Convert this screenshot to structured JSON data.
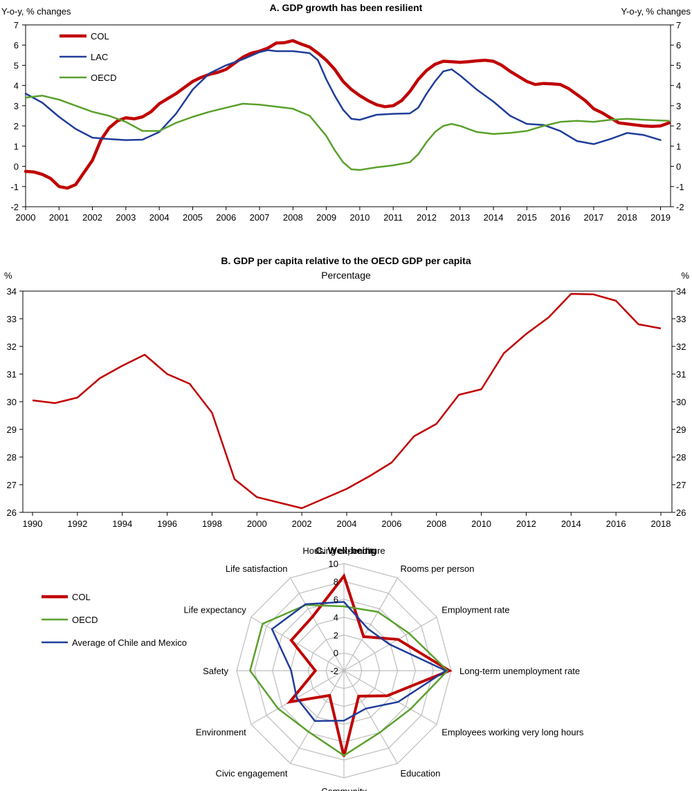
{
  "colors": {
    "col": "#c00000",
    "lac": "#1f3d99",
    "oecd": "#5aa02c",
    "grid": "#bdbdbd"
  },
  "panelA": {
    "title": "A. GDP growth has been resilient",
    "left_unit": "Y-o-y, % changes",
    "right_unit": "Y-o-y, % changes",
    "chart_data": {
      "type": "line",
      "ylim": [
        -2,
        7
      ],
      "xlim": [
        2000,
        2019.3
      ],
      "y_ticks": [
        "-2",
        "-1",
        "0",
        "1",
        "2",
        "3",
        "4",
        "5",
        "6",
        "7"
      ],
      "x_ticks": [
        "2000",
        "2001",
        "2002",
        "2003",
        "2004",
        "2005",
        "2006",
        "2007",
        "2008",
        "2009",
        "2010",
        "2011",
        "2012",
        "2013",
        "2014",
        "2015",
        "2016",
        "2017",
        "2018",
        "2019"
      ],
      "legend_position": "top-left",
      "series": [
        {
          "name": "COL",
          "color_key": "col",
          "points": [
            [
              2000,
              -0.25
            ],
            [
              2000.25,
              -0.28
            ],
            [
              2000.5,
              -0.4
            ],
            [
              2000.75,
              -0.6
            ],
            [
              2001,
              -1.0
            ],
            [
              2001.25,
              -1.08
            ],
            [
              2001.5,
              -0.9
            ],
            [
              2001.75,
              -0.3
            ],
            [
              2002,
              0.3
            ],
            [
              2002.25,
              1.3
            ],
            [
              2002.5,
              1.9
            ],
            [
              2002.75,
              2.25
            ],
            [
              2003,
              2.4
            ],
            [
              2003.25,
              2.35
            ],
            [
              2003.5,
              2.45
            ],
            [
              2003.75,
              2.7
            ],
            [
              2004,
              3.1
            ],
            [
              2004.25,
              3.35
            ],
            [
              2004.5,
              3.6
            ],
            [
              2004.75,
              3.9
            ],
            [
              2005,
              4.2
            ],
            [
              2005.25,
              4.4
            ],
            [
              2005.5,
              4.55
            ],
            [
              2005.75,
              4.65
            ],
            [
              2006,
              4.8
            ],
            [
              2006.25,
              5.1
            ],
            [
              2006.5,
              5.4
            ],
            [
              2006.75,
              5.6
            ],
            [
              2007,
              5.7
            ],
            [
              2007.25,
              5.85
            ],
            [
              2007.5,
              6.1
            ],
            [
              2007.75,
              6.12
            ],
            [
              2008,
              6.22
            ],
            [
              2008.25,
              6.05
            ],
            [
              2008.5,
              5.9
            ],
            [
              2008.75,
              5.6
            ],
            [
              2009,
              5.25
            ],
            [
              2009.25,
              4.8
            ],
            [
              2009.5,
              4.2
            ],
            [
              2009.75,
              3.8
            ],
            [
              2010,
              3.5
            ],
            [
              2010.25,
              3.25
            ],
            [
              2010.5,
              3.05
            ],
            [
              2010.75,
              2.95
            ],
            [
              2011,
              3.0
            ],
            [
              2011.25,
              3.25
            ],
            [
              2011.5,
              3.7
            ],
            [
              2011.75,
              4.3
            ],
            [
              2012,
              4.75
            ],
            [
              2012.25,
              5.05
            ],
            [
              2012.5,
              5.2
            ],
            [
              2012.75,
              5.18
            ],
            [
              2013,
              5.15
            ],
            [
              2013.25,
              5.18
            ],
            [
              2013.5,
              5.22
            ],
            [
              2013.75,
              5.25
            ],
            [
              2014,
              5.2
            ],
            [
              2014.25,
              5.0
            ],
            [
              2014.5,
              4.7
            ],
            [
              2014.75,
              4.45
            ],
            [
              2015,
              4.2
            ],
            [
              2015.25,
              4.05
            ],
            [
              2015.5,
              4.1
            ],
            [
              2015.75,
              4.08
            ],
            [
              2016,
              4.05
            ],
            [
              2016.25,
              3.85
            ],
            [
              2016.5,
              3.55
            ],
            [
              2016.75,
              3.25
            ],
            [
              2017,
              2.85
            ],
            [
              2017.25,
              2.65
            ],
            [
              2017.5,
              2.4
            ],
            [
              2017.75,
              2.15
            ],
            [
              2018,
              2.1
            ],
            [
              2018.25,
              2.05
            ],
            [
              2018.5,
              2.0
            ],
            [
              2018.75,
              1.98
            ],
            [
              2019,
              2.0
            ],
            [
              2019.25,
              2.15
            ]
          ]
        },
        {
          "name": "LAC",
          "color_key": "lac",
          "points": [
            [
              2000,
              3.6
            ],
            [
              2000.5,
              3.15
            ],
            [
              2001,
              2.45
            ],
            [
              2001.5,
              1.85
            ],
            [
              2002,
              1.42
            ],
            [
              2002.5,
              1.35
            ],
            [
              2003,
              1.3
            ],
            [
              2003.5,
              1.32
            ],
            [
              2004,
              1.7
            ],
            [
              2004.5,
              2.6
            ],
            [
              2005,
              3.8
            ],
            [
              2005.5,
              4.6
            ],
            [
              2006,
              5.0
            ],
            [
              2006.5,
              5.3
            ],
            [
              2007,
              5.65
            ],
            [
              2007.25,
              5.75
            ],
            [
              2007.5,
              5.7
            ],
            [
              2008,
              5.7
            ],
            [
              2008.25,
              5.65
            ],
            [
              2008.5,
              5.6
            ],
            [
              2008.75,
              5.25
            ],
            [
              2009,
              4.3
            ],
            [
              2009.25,
              3.5
            ],
            [
              2009.5,
              2.8
            ],
            [
              2009.75,
              2.35
            ],
            [
              2010,
              2.3
            ],
            [
              2010.5,
              2.55
            ],
            [
              2011,
              2.6
            ],
            [
              2011.5,
              2.62
            ],
            [
              2011.75,
              2.9
            ],
            [
              2012,
              3.6
            ],
            [
              2012.25,
              4.2
            ],
            [
              2012.5,
              4.7
            ],
            [
              2012.75,
              4.8
            ],
            [
              2013,
              4.5
            ],
            [
              2013.5,
              3.8
            ],
            [
              2014,
              3.2
            ],
            [
              2014.5,
              2.5
            ],
            [
              2015,
              2.1
            ],
            [
              2015.5,
              2.05
            ],
            [
              2016,
              1.75
            ],
            [
              2016.5,
              1.25
            ],
            [
              2017,
              1.1
            ],
            [
              2017.5,
              1.35
            ],
            [
              2018,
              1.65
            ],
            [
              2018.5,
              1.55
            ],
            [
              2019,
              1.3
            ]
          ]
        },
        {
          "name": "OECD",
          "color_key": "oecd",
          "points": [
            [
              2000,
              3.4
            ],
            [
              2000.5,
              3.5
            ],
            [
              2001,
              3.3
            ],
            [
              2001.5,
              3.0
            ],
            [
              2002,
              2.7
            ],
            [
              2002.5,
              2.5
            ],
            [
              2003,
              2.2
            ],
            [
              2003.5,
              1.75
            ],
            [
              2004,
              1.75
            ],
            [
              2004.5,
              2.15
            ],
            [
              2005,
              2.45
            ],
            [
              2005.5,
              2.7
            ],
            [
              2006,
              2.9
            ],
            [
              2006.5,
              3.1
            ],
            [
              2007,
              3.05
            ],
            [
              2007.5,
              2.95
            ],
            [
              2008,
              2.85
            ],
            [
              2008.5,
              2.5
            ],
            [
              2009,
              1.5
            ],
            [
              2009.25,
              0.8
            ],
            [
              2009.5,
              0.2
            ],
            [
              2009.75,
              -0.15
            ],
            [
              2010,
              -0.18
            ],
            [
              2010.5,
              -0.05
            ],
            [
              2011,
              0.05
            ],
            [
              2011.5,
              0.2
            ],
            [
              2011.75,
              0.6
            ],
            [
              2012,
              1.2
            ],
            [
              2012.25,
              1.7
            ],
            [
              2012.5,
              2.0
            ],
            [
              2012.75,
              2.1
            ],
            [
              2013,
              2.0
            ],
            [
              2013.5,
              1.7
            ],
            [
              2014,
              1.6
            ],
            [
              2014.5,
              1.65
            ],
            [
              2015,
              1.75
            ],
            [
              2015.5,
              2.0
            ],
            [
              2016,
              2.2
            ],
            [
              2016.5,
              2.25
            ],
            [
              2017,
              2.2
            ],
            [
              2017.5,
              2.3
            ],
            [
              2018,
              2.35
            ],
            [
              2018.5,
              2.3
            ],
            [
              2019,
              2.27
            ],
            [
              2019.25,
              2.25
            ]
          ]
        }
      ]
    }
  },
  "panelB": {
    "title": "B. GDP per capita relative to the OECD GDP per capita",
    "subtitle": "Percentage",
    "left_unit": "%",
    "right_unit": "%",
    "chart_data": {
      "type": "line",
      "ylim": [
        26,
        34
      ],
      "xlim": [
        1990,
        2018
      ],
      "y_ticks": [
        "26",
        "27",
        "28",
        "29",
        "30",
        "31",
        "32",
        "33",
        "34"
      ],
      "x_ticks": [
        "1990",
        "1992",
        "1994",
        "1996",
        "1998",
        "2000",
        "2002",
        "2004",
        "2006",
        "2008",
        "2010",
        "2012",
        "2014",
        "2016",
        "2018"
      ],
      "series": [
        {
          "name": "COL",
          "color_key": "col",
          "points": [
            [
              1990,
              30.05
            ],
            [
              1991,
              29.95
            ],
            [
              1992,
              30.15
            ],
            [
              1993,
              30.85
            ],
            [
              1994,
              31.3
            ],
            [
              1995,
              31.7
            ],
            [
              1996,
              31.0
            ],
            [
              1997,
              30.65
            ],
            [
              1998,
              29.6
            ],
            [
              1999,
              27.2
            ],
            [
              2000,
              26.55
            ],
            [
              2001,
              26.35
            ],
            [
              2002,
              26.15
            ],
            [
              2003,
              26.5
            ],
            [
              2004,
              26.85
            ],
            [
              2005,
              27.3
            ],
            [
              2006,
              27.8
            ],
            [
              2007,
              28.75
            ],
            [
              2008,
              29.2
            ],
            [
              2009,
              30.25
            ],
            [
              2010,
              30.45
            ],
            [
              2011,
              31.75
            ],
            [
              2012,
              32.45
            ],
            [
              2013,
              33.05
            ],
            [
              2014,
              33.9
            ],
            [
              2015,
              33.88
            ],
            [
              2016,
              33.65
            ],
            [
              2017,
              32.8
            ],
            [
              2018,
              32.65
            ]
          ]
        }
      ]
    }
  },
  "panelC": {
    "title": "C. Well-being",
    "chart_data": {
      "type": "radar",
      "rlim": [
        -2,
        10
      ],
      "r_ticks": [
        "-2",
        "0",
        "2",
        "4",
        "6",
        "8",
        "10"
      ],
      "legend_position": "left",
      "axes": [
        "Housing expenditure",
        "Rooms per person",
        "Employment rate",
        "Long-term unemployment rate",
        "Employees working very long hours",
        "Education",
        "Community",
        "Civic engagement",
        "Environment",
        "Safety",
        "Life expectancy",
        "Life satisfaction"
      ],
      "series": [
        {
          "name": "COL",
          "color_key": "col",
          "values": [
            8.6,
            2.4,
            5.0,
            9.8,
            3.6,
            1.3,
            7.6,
            1.2,
            5.0,
            1.2,
            4.8,
            5.0
          ]
        },
        {
          "name": "OECD",
          "color_key": "oecd",
          "values": [
            5.2,
            5.6,
            6.4,
            9.6,
            6.6,
            6.0,
            7.5,
            5.9,
            6.5,
            8.5,
            8.5,
            6.5
          ]
        },
        {
          "name": "Average of Chile and Mexico",
          "color_key": "lac",
          "values": [
            5.7,
            3.4,
            3.9,
            9.4,
            5.0,
            2.9,
            3.6,
            4.5,
            4.1,
            3.9,
            7.3,
            6.6
          ]
        }
      ]
    }
  }
}
